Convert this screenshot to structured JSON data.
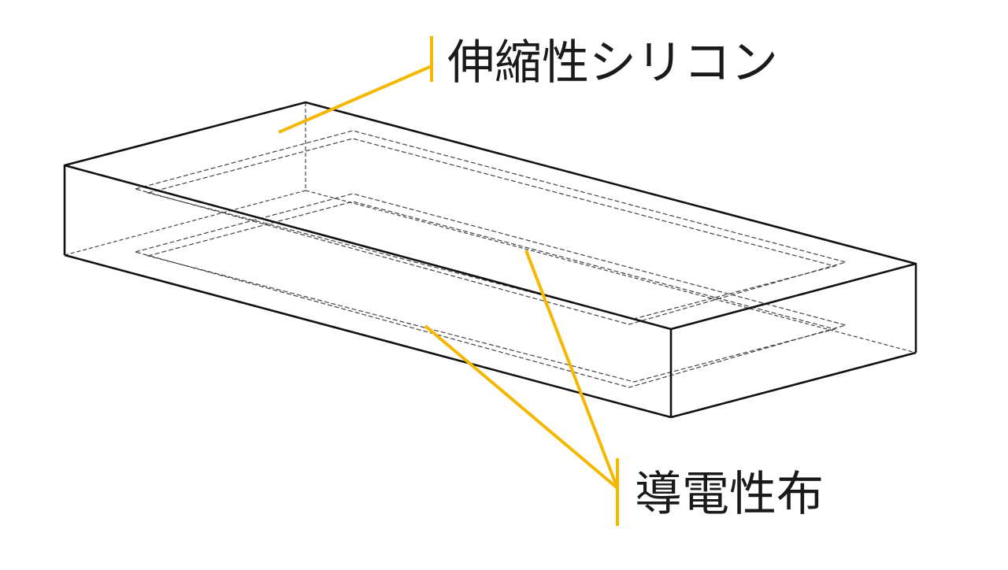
{
  "labels": {
    "silicone": "伸縮性シリコン",
    "fabric": "導電性布"
  },
  "colors": {
    "leader": "#f5b800",
    "outline": "#111111",
    "hidden_line": "#444444",
    "background": "#ffffff"
  }
}
